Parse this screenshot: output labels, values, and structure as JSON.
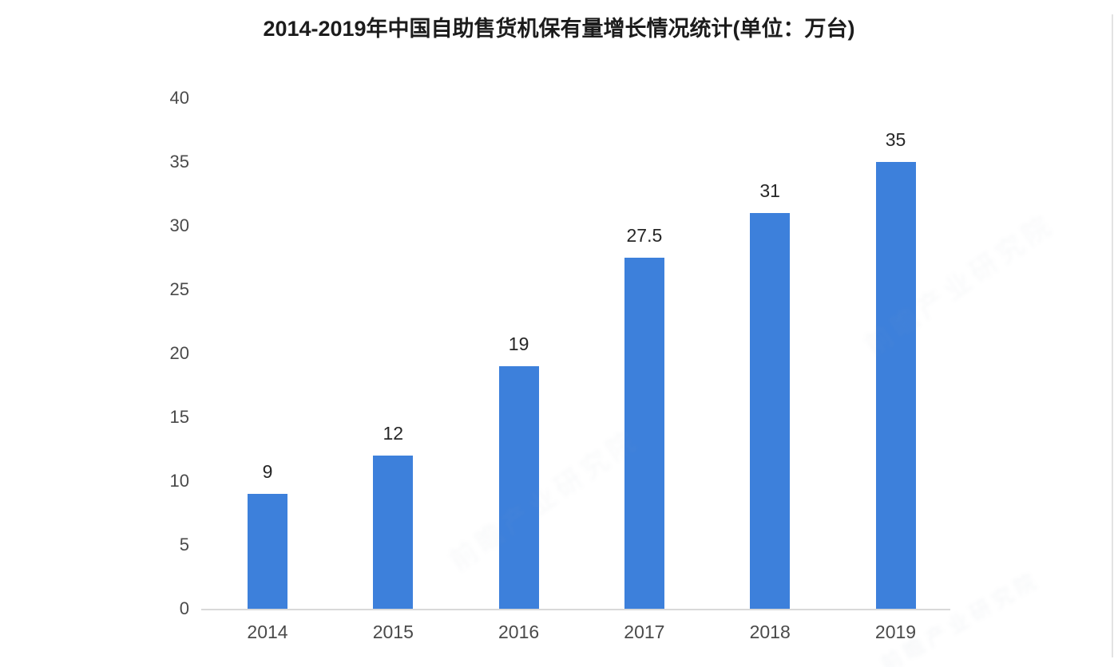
{
  "chart_data": {
    "type": "bar",
    "title": "2014-2019年中国自助售货机保有量增长情况统计(单位：万台)",
    "categories": [
      "2014",
      "2015",
      "2016",
      "2017",
      "2018",
      "2019"
    ],
    "values": [
      9,
      12,
      19,
      27.5,
      31,
      35
    ],
    "value_labels": [
      "9",
      "12",
      "19",
      "27.5",
      "31",
      "35"
    ],
    "yticks": [
      0,
      5,
      10,
      15,
      20,
      25,
      30,
      35,
      40
    ],
    "ylim": [
      0,
      40
    ],
    "xlabel": "",
    "ylabel": "",
    "grid": false,
    "legend_position": "none",
    "bar_color": "#3d80db",
    "axis_line_color": "#d9d9d9",
    "tick_label_color": "#4a4a4a",
    "value_label_color": "#262626",
    "title_color": "#1c1c1c"
  },
  "watermark": {
    "text": "前瞻产业研究院"
  }
}
